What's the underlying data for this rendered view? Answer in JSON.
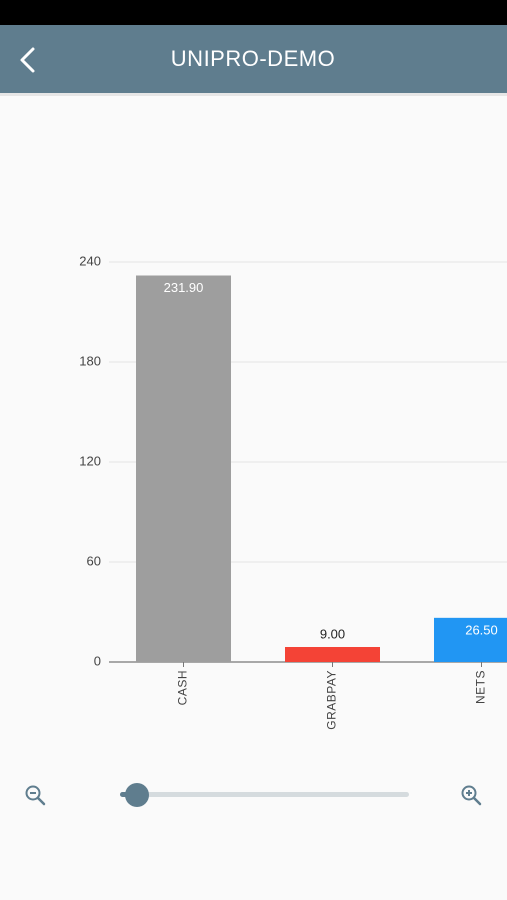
{
  "app_bar": {
    "title": "UNIPRO-DEMO"
  },
  "chart_data": {
    "type": "bar",
    "categories": [
      "CASH",
      "GRABPAY",
      "NETS"
    ],
    "values": [
      231.9,
      9,
      26.5
    ],
    "value_labels": [
      "231.90",
      "9.00",
      "26.50"
    ],
    "colors": [
      "#9e9e9e",
      "#f44336",
      "#2196f3"
    ],
    "ylim": [
      0,
      240
    ],
    "yticks": [
      0,
      60,
      120,
      180,
      240
    ],
    "grid": true
  }
}
